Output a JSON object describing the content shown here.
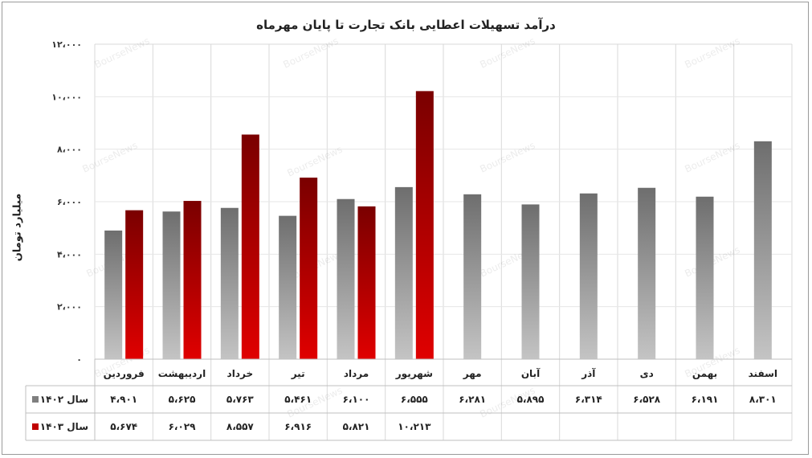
{
  "chart_data": {
    "type": "bar",
    "title": "درآمد تسهیلات اعطایی بانک تجارت تا پایان مهرماه",
    "ylabel": "میلیارد تومان",
    "ylim": [
      0,
      12000
    ],
    "yticks": [
      {
        "value": 0,
        "label": "۰"
      },
      {
        "value": 2000,
        "label": "۲،۰۰۰"
      },
      {
        "value": 4000,
        "label": "۴،۰۰۰"
      },
      {
        "value": 6000,
        "label": "۶،۰۰۰"
      },
      {
        "value": 8000,
        "label": "۸،۰۰۰"
      },
      {
        "value": 10000,
        "label": "۱۰،۰۰۰"
      },
      {
        "value": 12000,
        "label": "۱۲،۰۰۰"
      }
    ],
    "grid": true,
    "legend": "table-left",
    "watermark": "BourseNews",
    "categories": [
      "فروردین",
      "اردیبهشت",
      "خرداد",
      "تیر",
      "مرداد",
      "شهریور",
      "مهر",
      "آبان",
      "آذر",
      "دی",
      "بهمن",
      "اسفند"
    ],
    "series": [
      {
        "name": "سال ۱۴۰۲",
        "color": "#7f7f7f",
        "values": [
          4901,
          5625,
          5763,
          5461,
          6100,
          6555,
          6281,
          5895,
          6314,
          6528,
          6191,
          8301
        ],
        "labels": [
          "۴،۹۰۱",
          "۵،۶۲۵",
          "۵،۷۶۳",
          "۵،۴۶۱",
          "۶،۱۰۰",
          "۶،۵۵۵",
          "۶،۲۸۱",
          "۵،۸۹۵",
          "۶،۳۱۴",
          "۶،۵۲۸",
          "۶،۱۹۱",
          "۸،۳۰۱"
        ]
      },
      {
        "name": "سال ۱۴۰۳",
        "color": "#c00000",
        "values": [
          5674,
          6029,
          8557,
          6916,
          5821,
          10213,
          null,
          null,
          null,
          null,
          null,
          null
        ],
        "labels": [
          "۵،۶۷۴",
          "۶،۰۲۹",
          "۸،۵۵۷",
          "۶،۹۱۶",
          "۵،۸۲۱",
          "۱۰،۲۱۳",
          "",
          "",
          "",
          "",
          "",
          ""
        ]
      }
    ]
  }
}
